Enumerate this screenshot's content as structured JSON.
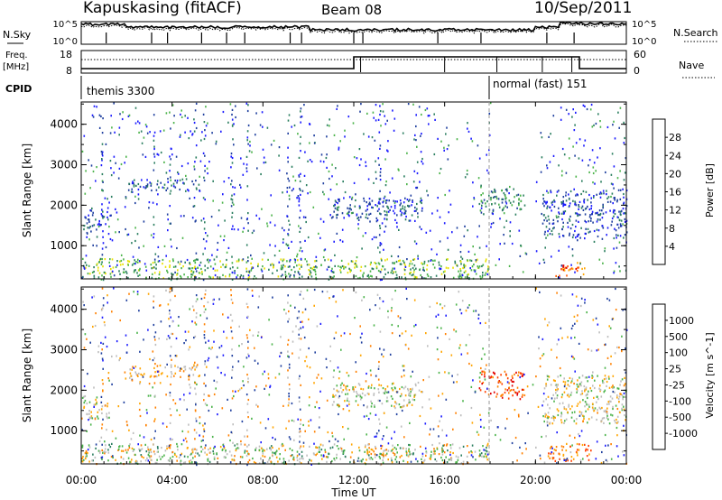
{
  "header": {
    "station": "Kapuskasing (fitACF)",
    "beam": "Beam 08",
    "date": "10/Sep/2011"
  },
  "top_panels": {
    "nsky_label": "N.Sky",
    "nsky_ticks": [
      "10^5",
      "10^0"
    ],
    "nsearch_label": "N.Search",
    "nsearch_ticks": [
      "10^5",
      "10^0"
    ],
    "freq_label_1": "Freq.",
    "freq_label_2": "[MHz]",
    "freq_ticks": [
      "18",
      "8"
    ],
    "nave_label": "Nave",
    "nave_ticks": [
      "60",
      "0"
    ],
    "cpid_label": "CPID",
    "cpid_segments": [
      {
        "label": "themis 3300",
        "start_hour": 0
      },
      {
        "label": "normal (fast) 151",
        "start_hour": 18
      }
    ]
  },
  "x_axis": {
    "label": "Time UT",
    "ticks": [
      "00:00",
      "04:00",
      "08:00",
      "12:00",
      "16:00",
      "20:00",
      "00:00"
    ],
    "range_hours": [
      0,
      24
    ]
  },
  "chart_data": [
    {
      "type": "heatmap",
      "panel": "power",
      "ylabel": "Slant Range [km]",
      "yticks": [
        1000,
        2000,
        3000,
        4000
      ],
      "ylim": [
        180,
        4550
      ],
      "xlim": [
        0,
        24
      ],
      "colorbar": {
        "label": "Power [dB]",
        "ticks": [
          "4",
          "8",
          "12",
          "16",
          "20",
          "24",
          "28"
        ],
        "colors": [
          "#1a1aff",
          "#1f3f9e",
          "#2a7e5f",
          "#4bb34a",
          "#e8e000",
          "#ffa500",
          "#ff5a00",
          "#e00000"
        ]
      },
      "regions": [
        {
          "x": [
            0.05,
            1.2
          ],
          "y": [
            1300,
            1900
          ],
          "level": 1
        },
        {
          "x": [
            2.0,
            5.2
          ],
          "y": [
            2350,
            2650
          ],
          "level": 1
        },
        {
          "x": [
            11.0,
            15.0
          ],
          "y": [
            1600,
            2200
          ],
          "level": 1
        },
        {
          "x": [
            17.5,
            19.5
          ],
          "y": [
            1800,
            2500
          ],
          "level": 2
        },
        {
          "x": [
            20.3,
            24
          ],
          "y": [
            1200,
            2400
          ],
          "level": 1
        },
        {
          "x": [
            20.8,
            22.2
          ],
          "y": [
            250,
            600
          ],
          "level": 6
        },
        {
          "x": [
            0,
            17.9
          ],
          "y": [
            200,
            700
          ],
          "level": 3
        }
      ]
    },
    {
      "type": "heatmap",
      "panel": "velocity",
      "ylabel": "Slant Range [km]",
      "yticks": [
        1000,
        2000,
        3000,
        4000
      ],
      "ylim": [
        180,
        4550
      ],
      "xlim": [
        0,
        24
      ],
      "colorbar": {
        "label": "Velocity [m s^-1]",
        "ticks": [
          "1000",
          "500",
          "100",
          "25",
          "-25",
          "-100",
          "-500",
          "-1000"
        ],
        "colors": [
          "#1a1aff",
          "#1f3f9e",
          "#2a7e5f",
          "#4bb34a",
          "#bdbdbd",
          "#ffa500",
          "#ff8000",
          "#ff4000",
          "#e00000"
        ]
      },
      "regions": [
        {
          "x": [
            0.05,
            1.2
          ],
          "y": [
            1300,
            1900
          ],
          "level": 4
        },
        {
          "x": [
            2.0,
            5.2
          ],
          "y": [
            2350,
            2650
          ],
          "level": 5
        },
        {
          "x": [
            11.0,
            15.0
          ],
          "y": [
            1600,
            2200
          ],
          "level": 4
        },
        {
          "x": [
            17.5,
            19.5
          ],
          "y": [
            1800,
            2500
          ],
          "level": 7
        },
        {
          "x": [
            20.3,
            24
          ],
          "y": [
            1200,
            2400
          ],
          "level": 4
        },
        {
          "x": [
            20.5,
            22.5
          ],
          "y": [
            250,
            700
          ],
          "level": 6
        },
        {
          "x": [
            0,
            17.9
          ],
          "y": [
            200,
            700
          ],
          "level": 3
        }
      ]
    }
  ]
}
